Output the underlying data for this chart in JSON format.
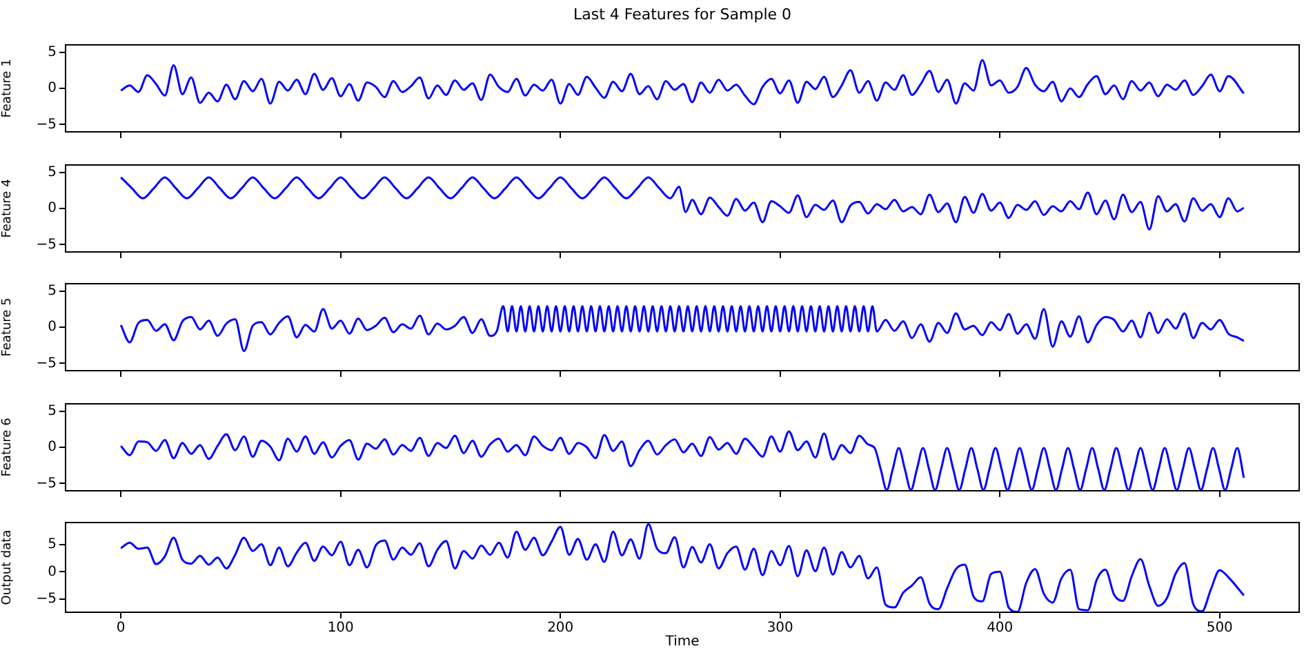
{
  "chart_data": [
    {
      "type": "line",
      "title": "Last 4 Features for Sample 0",
      "ylabel": "Feature 1",
      "color": "#0000ff",
      "marker": "none",
      "tick_labels": "y",
      "xlim": [
        -25.5,
        536.5
      ],
      "xticks": [
        0,
        100,
        200,
        300,
        400,
        500
      ],
      "ylim": [
        -6.1,
        6.1
      ],
      "yticks": [
        -5,
        0,
        5
      ],
      "x": [
        0,
        4,
        8,
        12,
        16,
        20,
        24,
        28,
        32,
        36,
        40,
        44,
        48,
        52,
        56,
        60,
        64,
        68,
        72,
        76,
        80,
        84,
        88,
        92,
        96,
        100,
        104,
        108,
        112,
        116,
        120,
        124,
        128,
        132,
        136,
        140,
        144,
        148,
        152,
        156,
        160,
        164,
        168,
        172,
        176,
        180,
        184,
        188,
        192,
        196,
        200,
        204,
        208,
        212,
        216,
        220,
        224,
        228,
        232,
        236,
        240,
        244,
        248,
        252,
        256,
        260,
        264,
        268,
        272,
        276,
        280,
        284,
        288,
        292,
        296,
        300,
        304,
        308,
        312,
        316,
        320,
        324,
        328,
        332,
        336,
        340,
        344,
        348,
        352,
        356,
        360,
        364,
        368,
        372,
        376,
        380,
        384,
        388,
        392,
        396,
        400,
        404,
        408,
        412,
        416,
        420,
        424,
        428,
        432,
        436,
        440,
        444,
        448,
        452,
        456,
        460,
        464,
        468,
        472,
        476,
        480,
        484,
        488,
        492,
        496,
        500,
        504,
        511
      ],
      "values": [
        -0.3,
        0.4,
        -0.5,
        1.8,
        0.6,
        -1.0,
        3.2,
        -0.8,
        1.5,
        -2.0,
        -0.6,
        -1.8,
        0.5,
        -1.5,
        1.0,
        -0.4,
        1.3,
        -2.1,
        0.9,
        -0.3,
        1.2,
        -0.8,
        2.0,
        -0.2,
        1.4,
        -1.1,
        0.6,
        -1.7,
        0.8,
        0.2,
        -1.2,
        1.0,
        -0.5,
        0.3,
        1.5,
        -1.4,
        0.4,
        -0.9,
        1.1,
        -0.2,
        0.7,
        -1.6,
        1.9,
        0.2,
        -0.5,
        1.3,
        -1.0,
        0.5,
        -0.3,
        1.2,
        -2.1,
        0.6,
        -0.9,
        1.6,
        0.1,
        -1.3,
        0.9,
        -0.4,
        2.0,
        -0.8,
        0.3,
        -1.5,
        1.0,
        -0.2,
        0.6,
        -1.9,
        0.8,
        -0.6,
        1.2,
        -0.3,
        0.5,
        -1.0,
        -2.2,
        0.2,
        1.3,
        -0.7,
        1.1,
        -2.0,
        0.9,
        -0.1,
        1.6,
        -1.2,
        0.4,
        2.5,
        -0.6,
        1.0,
        -1.7,
        0.8,
        -0.2,
        1.8,
        -0.9,
        0.6,
        2.4,
        -0.5,
        1.2,
        -2.1,
        0.7,
        -0.3,
        3.9,
        0.4,
        1.1,
        -0.6,
        0.2,
        2.8,
        0.5,
        -0.4,
        0.9,
        -1.8,
        0.0,
        -1.2,
        0.6,
        1.7,
        -0.8,
        0.4,
        -1.5,
        1.0,
        -0.3,
        0.8,
        -1.1,
        0.5,
        -0.2,
        1.1,
        -0.9,
        0.3,
        1.9,
        -0.4,
        1.7,
        -0.7
      ]
    },
    {
      "type": "line",
      "ylabel": "Feature 4",
      "color": "#0000ff",
      "marker": "none",
      "tick_labels": "y",
      "xlim": [
        -25.5,
        536.5
      ],
      "xticks": [
        0,
        100,
        200,
        300,
        400,
        500
      ],
      "ylim": [
        -6.1,
        6.1
      ],
      "yticks": [
        -5,
        0,
        5
      ],
      "x": [
        0,
        5,
        10,
        15,
        20,
        25,
        30,
        35,
        40,
        45,
        50,
        55,
        60,
        65,
        70,
        75,
        80,
        85,
        90,
        95,
        100,
        105,
        110,
        115,
        120,
        125,
        130,
        135,
        140,
        145,
        150,
        155,
        160,
        165,
        170,
        175,
        180,
        185,
        190,
        195,
        200,
        205,
        210,
        215,
        220,
        225,
        230,
        235,
        240,
        245,
        250,
        254,
        257,
        260,
        264,
        268,
        272,
        276,
        280,
        284,
        288,
        292,
        296,
        300,
        304,
        308,
        312,
        316,
        320,
        324,
        328,
        332,
        336,
        340,
        344,
        348,
        352,
        356,
        360,
        364,
        368,
        372,
        376,
        380,
        384,
        388,
        392,
        396,
        400,
        404,
        408,
        412,
        416,
        420,
        424,
        428,
        432,
        436,
        440,
        444,
        448,
        452,
        456,
        460,
        464,
        468,
        472,
        476,
        480,
        484,
        488,
        492,
        496,
        500,
        504,
        508,
        511
      ],
      "values": [
        4.3,
        2.8,
        1.4,
        2.8,
        4.3,
        2.8,
        1.4,
        2.8,
        4.3,
        2.8,
        1.4,
        2.8,
        4.3,
        2.8,
        1.4,
        2.8,
        4.3,
        2.8,
        1.4,
        2.8,
        4.3,
        2.8,
        1.4,
        2.8,
        4.3,
        2.8,
        1.4,
        2.8,
        4.3,
        2.8,
        1.4,
        2.8,
        4.3,
        2.8,
        1.4,
        2.8,
        4.3,
        2.8,
        1.4,
        2.8,
        4.3,
        2.8,
        1.4,
        2.8,
        4.3,
        2.8,
        1.4,
        2.8,
        4.3,
        2.8,
        1.4,
        3.0,
        -0.5,
        1.2,
        -0.8,
        1.5,
        0.2,
        -1.0,
        1.3,
        -0.3,
        0.8,
        -1.9,
        1.0,
        0.3,
        -0.6,
        1.8,
        -1.2,
        0.5,
        -0.2,
        1.1,
        -1.9,
        0.4,
        0.9,
        -0.7,
        0.6,
        -0.1,
        1.2,
        -0.4,
        0.2,
        -0.8,
        1.9,
        -0.5,
        0.7,
        -1.9,
        1.6,
        -0.6,
        2.0,
        -0.3,
        0.8,
        -1.3,
        0.5,
        -0.2,
        1.0,
        -0.9,
        0.3,
        -0.4,
        1.0,
        -0.1,
        2.2,
        -0.8,
        1.1,
        -1.5,
        1.9,
        -0.5,
        0.9,
        -2.9,
        1.7,
        -0.4,
        0.6,
        -1.8,
        1.4,
        -0.3,
        0.6,
        -1.2,
        1.4,
        -0.4,
        0.1
      ]
    },
    {
      "type": "line",
      "ylabel": "Feature 5",
      "color": "#0000ff",
      "marker": "none",
      "tick_labels": "y",
      "xlim": [
        -25.5,
        536.5
      ],
      "xticks": [
        0,
        100,
        200,
        300,
        400,
        500
      ],
      "ylim": [
        -6.1,
        6.1
      ],
      "yticks": [
        -5,
        0,
        5
      ],
      "x": [
        0,
        4,
        8,
        12,
        16,
        20,
        24,
        28,
        32,
        36,
        40,
        44,
        48,
        52,
        56,
        60,
        64,
        68,
        72,
        76,
        80,
        84,
        88,
        92,
        96,
        100,
        104,
        108,
        112,
        116,
        120,
        124,
        128,
        132,
        136,
        140,
        144,
        148,
        152,
        156,
        160,
        164,
        168,
        171,
        174,
        176,
        178,
        180,
        182,
        184,
        186,
        188,
        190,
        192,
        194,
        196,
        198,
        200,
        202,
        204,
        206,
        208,
        210,
        212,
        214,
        216,
        218,
        220,
        222,
        224,
        226,
        228,
        230,
        232,
        234,
        236,
        238,
        240,
        242,
        244,
        246,
        248,
        250,
        252,
        254,
        256,
        258,
        260,
        262,
        264,
        266,
        268,
        270,
        272,
        274,
        276,
        278,
        280,
        282,
        284,
        286,
        288,
        290,
        292,
        294,
        296,
        298,
        300,
        302,
        304,
        306,
        308,
        310,
        312,
        314,
        316,
        318,
        320,
        322,
        324,
        326,
        328,
        330,
        332,
        334,
        336,
        338,
        340,
        342,
        344,
        348,
        352,
        356,
        360,
        364,
        368,
        372,
        376,
        380,
        384,
        388,
        392,
        396,
        400,
        404,
        408,
        412,
        416,
        420,
        424,
        428,
        432,
        436,
        440,
        444,
        448,
        452,
        456,
        460,
        464,
        468,
        472,
        476,
        480,
        484,
        488,
        492,
        496,
        500,
        504,
        508,
        511
      ],
      "values": [
        0.3,
        -2.1,
        0.6,
        1.0,
        -0.5,
        0.4,
        -1.8,
        0.8,
        1.4,
        -0.3,
        0.9,
        -1.2,
        0.5,
        1.1,
        -3.3,
        0.2,
        0.7,
        -1.0,
        0.6,
        1.5,
        -1.4,
        0.3,
        -0.6,
        2.5,
        -0.2,
        0.9,
        -0.9,
        1.2,
        -0.4,
        0.2,
        1.3,
        -0.7,
        0.4,
        -0.2,
        1.6,
        -1.0,
        0.5,
        -0.3,
        0.2,
        1.4,
        -0.8,
        1.1,
        -1.2,
        -0.6,
        2.9,
        -0.6,
        2.9,
        -0.6,
        2.9,
        -0.6,
        2.9,
        -0.6,
        2.9,
        -0.6,
        2.9,
        -0.6,
        2.9,
        -0.6,
        2.9,
        -0.6,
        2.9,
        -0.6,
        2.9,
        -0.6,
        2.9,
        -0.6,
        2.9,
        -0.6,
        2.9,
        -0.6,
        2.9,
        -0.6,
        2.9,
        -0.6,
        2.9,
        -0.6,
        2.9,
        -0.6,
        2.9,
        -0.6,
        2.9,
        -0.6,
        2.9,
        -0.6,
        2.9,
        -0.6,
        2.9,
        -0.6,
        2.9,
        -0.6,
        2.9,
        -0.6,
        2.9,
        -0.6,
        2.9,
        -0.6,
        2.9,
        -0.6,
        2.9,
        -0.6,
        2.9,
        -0.6,
        2.9,
        -0.6,
        2.9,
        -0.6,
        2.9,
        -0.6,
        2.9,
        -0.6,
        2.9,
        -0.6,
        2.9,
        -0.6,
        2.9,
        -0.6,
        2.9,
        -0.6,
        2.9,
        -0.6,
        2.9,
        -0.6,
        2.9,
        -0.6,
        2.9,
        -0.6,
        2.9,
        -0.6,
        2.9,
        -0.6,
        1.0,
        -0.5,
        0.8,
        -1.5,
        0.4,
        -2.0,
        0.6,
        -0.8,
        1.9,
        -0.3,
        0.2,
        -1.1,
        0.7,
        -0.4,
        1.8,
        -0.9,
        0.4,
        -1.6,
        2.5,
        -2.7,
        0.8,
        -1.3,
        1.5,
        -2.1,
        0.3,
        1.4,
        1.0,
        -0.6,
        0.9,
        -1.4,
        2.0,
        -0.8,
        1.1,
        -0.2,
        1.9,
        -1.5,
        0.6,
        -0.3,
        1.0,
        -0.9,
        -1.4,
        -1.9
      ]
    },
    {
      "type": "line",
      "ylabel": "Feature 6",
      "color": "#0000ff",
      "marker": "none",
      "tick_labels": "y",
      "xlim": [
        -25.5,
        536.5
      ],
      "xticks": [
        0,
        100,
        200,
        300,
        400,
        500
      ],
      "ylim": [
        -6.1,
        6.1
      ],
      "yticks": [
        -5,
        0,
        5
      ],
      "x": [
        0,
        4,
        8,
        12,
        16,
        20,
        24,
        28,
        32,
        36,
        40,
        44,
        48,
        52,
        56,
        60,
        64,
        68,
        72,
        76,
        80,
        84,
        88,
        92,
        96,
        100,
        104,
        108,
        112,
        116,
        120,
        124,
        128,
        132,
        136,
        140,
        144,
        148,
        152,
        156,
        160,
        164,
        168,
        172,
        176,
        180,
        184,
        188,
        192,
        196,
        200,
        204,
        208,
        212,
        216,
        220,
        224,
        228,
        232,
        236,
        240,
        244,
        248,
        252,
        256,
        260,
        264,
        268,
        272,
        276,
        280,
        284,
        288,
        292,
        296,
        300,
        304,
        308,
        312,
        316,
        320,
        324,
        328,
        332,
        336,
        340,
        343,
        345.75,
        348.5,
        351.25,
        354,
        356.75,
        359.5,
        362.25,
        365,
        367.75,
        370.5,
        373.25,
        376,
        378.75,
        381.5,
        384.25,
        387,
        389.75,
        392.5,
        395.25,
        398,
        400.75,
        403.5,
        406.25,
        409,
        411.75,
        414.5,
        417.25,
        420,
        422.75,
        425.5,
        428.25,
        431,
        433.75,
        436.5,
        439.25,
        442,
        444.75,
        447.5,
        450.25,
        453,
        455.75,
        458.5,
        461.25,
        464,
        466.75,
        469.5,
        472.25,
        475,
        477.75,
        480.5,
        483.25,
        486,
        488.75,
        491.5,
        494.25,
        497,
        499.75,
        502.5,
        505.25,
        508,
        511
      ],
      "values": [
        0.2,
        -1.1,
        0.8,
        0.7,
        -0.5,
        1.0,
        -1.5,
        0.6,
        -0.9,
        0.3,
        -1.6,
        0.2,
        1.8,
        -0.4,
        1.5,
        -1.3,
        0.9,
        0.1,
        -1.8,
        1.2,
        -0.6,
        1.5,
        -0.9,
        0.7,
        -1.4,
        0.2,
        1.0,
        -1.7,
        0.5,
        -0.2,
        1.1,
        -1.0,
        0.3,
        -0.5,
        1.3,
        -1.2,
        0.6,
        -0.1,
        1.6,
        -0.8,
        0.9,
        -1.3,
        0.4,
        1.2,
        -0.6,
        0.3,
        -1.1,
        1.5,
        0.2,
        -0.4,
        1.3,
        -0.9,
        0.6,
        0.0,
        -1.5,
        1.7,
        -0.5,
        0.8,
        -2.6,
        -0.4,
        0.9,
        -1.0,
        0.3,
        1.1,
        -0.7,
        0.5,
        -1.2,
        1.4,
        -0.3,
        0.6,
        -0.9,
        1.2,
        0.0,
        -1.3,
        1.5,
        -0.6,
        2.2,
        -0.4,
        0.8,
        -1.4,
        1.9,
        -1.7,
        0.3,
        -0.8,
        1.6,
        0.4,
        -0.1,
        -3,
        -5.9,
        -3,
        -0.1,
        -3,
        -5.9,
        -3,
        -0.1,
        -3,
        -5.9,
        -3,
        -0.1,
        -3,
        -5.9,
        -3,
        -0.1,
        -3,
        -5.9,
        -3,
        -0.1,
        -3,
        -5.9,
        -3,
        -0.1,
        -3,
        -5.9,
        -3,
        -0.1,
        -3,
        -5.9,
        -3,
        -0.1,
        -3,
        -5.9,
        -3,
        -0.1,
        -3,
        -5.9,
        -3,
        -0.1,
        -3,
        -5.9,
        -3,
        -0.1,
        -3,
        -5.9,
        -3,
        -0.1,
        -3,
        -5.9,
        -3,
        -0.1,
        -3,
        -5.9,
        -3,
        -0.1,
        -3,
        -5.9,
        -3,
        -0.1,
        -4.2
      ]
    },
    {
      "type": "line",
      "ylabel": "Output data",
      "xlabel": "Time",
      "color": "#0000ff",
      "marker": "none",
      "xlim": [
        -25.5,
        536.5
      ],
      "xticks": [
        0,
        100,
        200,
        300,
        400,
        500
      ],
      "ylim": [
        -7.5,
        9.1
      ],
      "yticks": [
        -5,
        0,
        5
      ],
      "x": [
        0,
        4,
        8,
        12,
        16,
        20,
        24,
        28,
        32,
        36,
        40,
        44,
        48,
        52,
        56,
        60,
        64,
        68,
        72,
        76,
        80,
        84,
        88,
        92,
        96,
        100,
        104,
        108,
        112,
        116,
        120,
        124,
        128,
        132,
        136,
        140,
        144,
        148,
        152,
        156,
        160,
        164,
        168,
        172,
        176,
        180,
        184,
        188,
        192,
        196,
        200,
        204,
        208,
        212,
        216,
        220,
        224,
        228,
        232,
        236,
        240,
        244,
        248,
        252,
        256,
        260,
        264,
        268,
        272,
        276,
        280,
        284,
        288,
        292,
        296,
        300,
        304,
        308,
        312,
        316,
        320,
        324,
        328,
        332,
        336,
        340,
        344,
        348,
        352,
        356,
        360,
        364,
        368,
        372,
        376,
        380,
        384,
        388,
        392,
        396,
        400,
        404,
        408,
        412,
        416,
        420,
        424,
        428,
        432,
        436,
        440,
        444,
        448,
        452,
        456,
        460,
        464,
        468,
        472,
        476,
        480,
        484,
        488,
        492,
        496,
        500,
        504,
        511
      ],
      "values": [
        4.3,
        5.3,
        4.2,
        4.4,
        1.4,
        2.8,
        6.2,
        2.2,
        1.5,
        2.9,
        1.3,
        2.6,
        0.6,
        3.1,
        6.2,
        3.8,
        5.0,
        1.2,
        4.4,
        1.0,
        3.5,
        5.3,
        2.0,
        4.6,
        3.0,
        5.5,
        1.2,
        4.0,
        0.8,
        4.8,
        5.7,
        2.2,
        4.4,
        3.1,
        5.2,
        1.0,
        4.0,
        5.6,
        0.6,
        3.8,
        2.4,
        4.8,
        3.1,
        5.3,
        2.6,
        7.3,
        4.0,
        6.2,
        3.0,
        5.5,
        8.2,
        3.1,
        6.0,
        2.2,
        5.0,
        1.8,
        7.3,
        3.0,
        5.9,
        2.4,
        8.7,
        4.2,
        3.4,
        6.3,
        0.8,
        4.5,
        1.7,
        5.0,
        0.6,
        3.4,
        4.6,
        0.4,
        4.2,
        -0.6,
        3.8,
        1.2,
        4.7,
        -0.8,
        3.9,
        0.1,
        4.4,
        -0.5,
        3.6,
        0.8,
        2.9,
        -1.2,
        0.8,
        -6.0,
        -6.5,
        -3.8,
        -2.5,
        -1.0,
        -5.8,
        -6.8,
        -3.0,
        0.5,
        1.3,
        -4.5,
        -5.4,
        -0.4,
        0.0,
        -6.5,
        -7.3,
        -2.0,
        0.5,
        -4.0,
        -5.6,
        -1.2,
        0.4,
        -6.8,
        -7.0,
        -1.5,
        0.4,
        -4.2,
        -5.3,
        -0.8,
        2.3,
        -2.6,
        -6.2,
        -4.8,
        -0.3,
        1.6,
        -5.9,
        -7.2,
        -3.2,
        0.3,
        -1.0,
        -4.3
      ]
    }
  ]
}
